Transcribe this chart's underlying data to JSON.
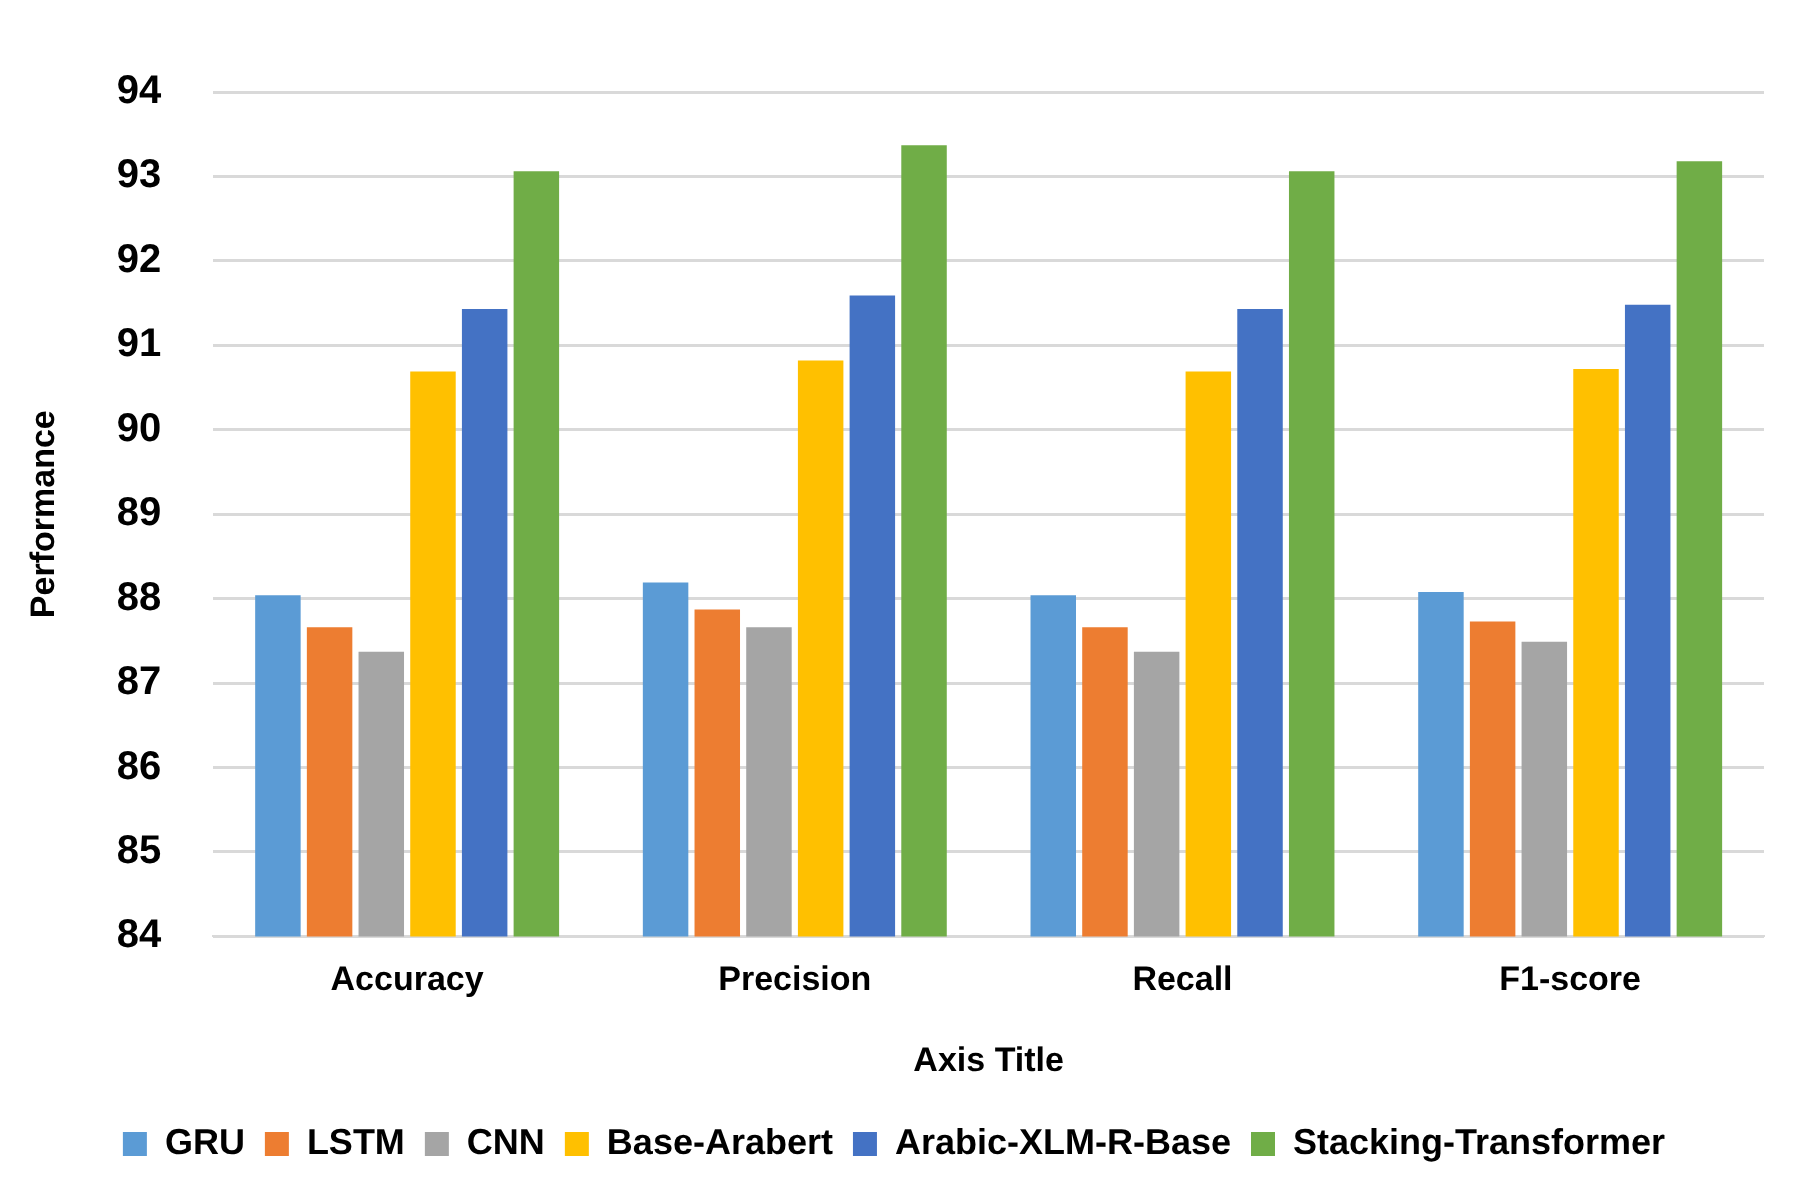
{
  "chart_data": {
    "type": "bar",
    "xlabel": "Axis Title",
    "ylabel": "Performance",
    "categories": [
      "Accuracy",
      "Precision",
      "Recall",
      "F1-score"
    ],
    "series": [
      {
        "name": "GRU",
        "color": "#5b9bd5",
        "values": [
          88.04,
          88.19,
          88.04,
          88.08
        ]
      },
      {
        "name": "LSTM",
        "color": "#ed7d31",
        "values": [
          87.66,
          87.87,
          87.66,
          87.73
        ]
      },
      {
        "name": "CNN",
        "color": "#a5a5a5",
        "values": [
          87.37,
          87.66,
          87.37,
          87.49
        ]
      },
      {
        "name": "Base-Arabert",
        "color": "#ffc000",
        "values": [
          90.69,
          90.82,
          90.69,
          90.72
        ]
      },
      {
        "name": "Arabic-XLM-R-Base",
        "color": "#4472c4",
        "values": [
          91.43,
          91.59,
          91.43,
          91.48
        ]
      },
      {
        "name": "Stacking-Transformer",
        "color": "#70ad47",
        "values": [
          93.06,
          93.37,
          93.06,
          93.18
        ]
      }
    ],
    "ylim": [
      84,
      94
    ],
    "yticks": [
      84,
      85,
      86,
      87,
      88,
      89,
      90,
      91,
      92,
      93,
      94
    ],
    "grid": "y",
    "legend": "bottom"
  }
}
